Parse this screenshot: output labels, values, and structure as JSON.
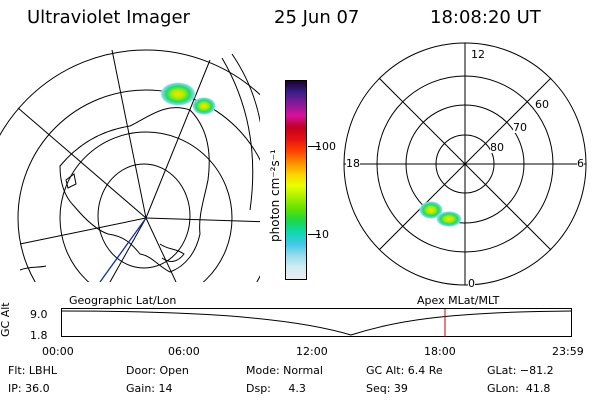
{
  "header": {
    "title": "Ultraviolet Imager",
    "date": "25 Jun 07",
    "time": "18:08:20 UT"
  },
  "geo_map": {
    "label": "Geographic Lat/Lon"
  },
  "colorbar": {
    "unit_label": "photon cm⁻²s⁻¹",
    "ticks": [
      "100",
      "10"
    ],
    "colors": [
      "#1a0030",
      "#3d1e8a",
      "#8a1a9a",
      "#d8109a",
      "#c00020",
      "#e81010",
      "#ff4000",
      "#ff8c00",
      "#ffd000",
      "#e8ff00",
      "#a8f000",
      "#60e000",
      "#18d848",
      "#10d8b0",
      "#40c8e8",
      "#9adcec",
      "#d0ecf2",
      "#ececf0"
    ]
  },
  "polar_map": {
    "mlt_labels": {
      "top": "12",
      "left": "18",
      "right": "6",
      "bottom": "0"
    },
    "lat_labels": [
      "60",
      "70",
      "80"
    ]
  },
  "altitude_plot": {
    "ylabel": "GC Alt",
    "yticks": [
      "9.0",
      "1.8"
    ],
    "top_left_label": "Geographic Lat/Lon",
    "top_right_label": "Apex MLat/MLT",
    "xticks": [
      "00:00",
      "06:00",
      "12:00",
      "18:00",
      "23:59"
    ]
  },
  "info": {
    "filter": "Flt: LBHL",
    "ip": "IP: 36.0",
    "door": "Door: Open",
    "gain": "Gain: 14",
    "mode": "Mode: Normal",
    "dsp": "Dsp:     4.3",
    "gc_alt": "GC Alt: 6.4 Re",
    "seq": "Seq: 39",
    "glat": "GLat: −81.2",
    "glon": "GLon:  41.8"
  },
  "colors": {
    "background": "#ffffff",
    "lines": "#000000",
    "time_marker": "#cc0000",
    "ground_track": "#1030a0"
  }
}
